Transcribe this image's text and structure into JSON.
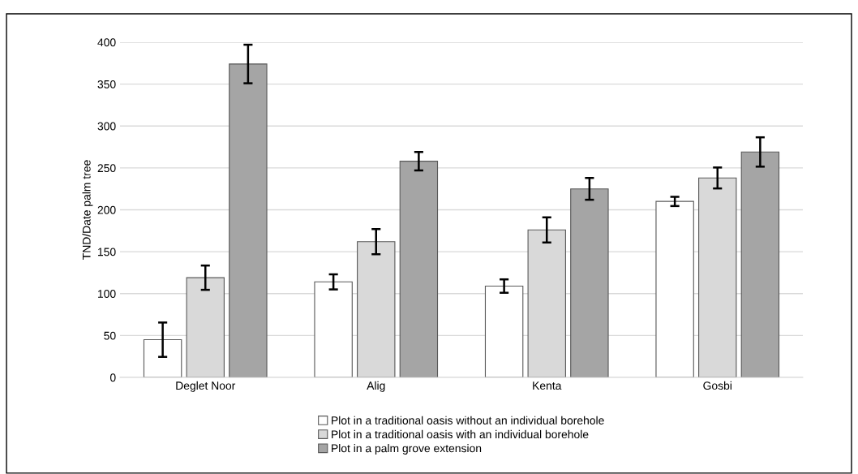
{
  "chart_data": {
    "type": "bar",
    "ylabel": "TND/Date palm tree",
    "categories": [
      "Deglet Noor",
      "Alig",
      "Kenta",
      "Gosbi"
    ],
    "series": [
      {
        "name": "Plot in a traditional oasis without an individual borehole",
        "color": "#ffffff",
        "values": [
          45,
          114,
          109,
          210
        ],
        "errors": [
          20.5,
          9,
          8,
          5.5
        ]
      },
      {
        "name": "Plot in a traditional oasis with an individual borehole",
        "color": "#d9d9d9",
        "values": [
          119,
          162,
          176,
          238
        ],
        "errors": [
          14.5,
          15,
          15,
          12.5
        ]
      },
      {
        "name": "Plot in a palm grove extension",
        "color": "#a5a5a5",
        "values": [
          374,
          258,
          225,
          269
        ],
        "errors": [
          23,
          11,
          13,
          17.5
        ]
      }
    ],
    "ylim": [
      0,
      400
    ],
    "yticks": [
      0,
      50,
      100,
      150,
      200,
      250,
      300,
      350,
      400
    ],
    "grid": "y",
    "legend": "bottom"
  }
}
